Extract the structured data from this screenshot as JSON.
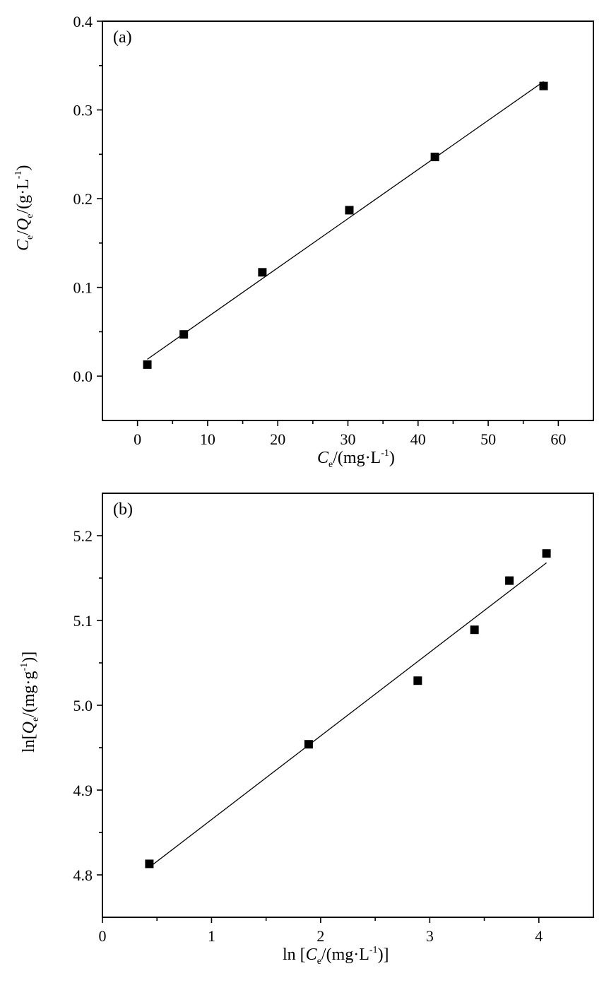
{
  "chart_data": [
    {
      "type": "scatter",
      "panel_label": "(a)",
      "xlabel": "Ce/(mg·L-1)",
      "ylabel": "Ce/Qe/(g·L-1)",
      "xlim": [
        -5,
        65
      ],
      "ylim": [
        -0.05,
        0.4
      ],
      "x_ticks": [
        0,
        10,
        20,
        30,
        40,
        50,
        60
      ],
      "x_tick_labels": [
        "0",
        "10",
        "20",
        "30",
        "40",
        "50",
        "60"
      ],
      "y_ticks": [
        0.0,
        0.1,
        0.2,
        0.3,
        0.4
      ],
      "y_tick_labels": [
        "0.0",
        "0.1",
        "0.2",
        "0.3",
        "0.4"
      ],
      "series": [
        {
          "marker": "square",
          "color": "#000000",
          "x": [
            1.4,
            6.6,
            17.8,
            30.2,
            42.4,
            57.9
          ],
          "y": [
            0.013,
            0.047,
            0.117,
            0.187,
            0.247,
            0.327
          ]
        }
      ],
      "fit_line": {
        "x": [
          1.4,
          57.9
        ],
        "y": [
          0.019,
          0.332
        ]
      }
    },
    {
      "type": "scatter",
      "panel_label": "(b)",
      "xlabel": "ln[Ce/(mg·L-1)]",
      "ylabel": "ln[Qe/(mg·g-1)]",
      "xlim": [
        0,
        4.5
      ],
      "ylim": [
        4.75,
        5.25
      ],
      "x_ticks": [
        0,
        1,
        2,
        3,
        4
      ],
      "x_tick_labels": [
        "0",
        "1",
        "2",
        "3",
        "4"
      ],
      "y_ticks": [
        4.8,
        4.9,
        5.0,
        5.1,
        5.2
      ],
      "y_tick_labels": [
        "4.8",
        "4.9",
        "5.0",
        "5.1",
        "5.2"
      ],
      "series": [
        {
          "marker": "square",
          "color": "#000000",
          "x": [
            0.43,
            1.89,
            2.89,
            3.41,
            3.73,
            4.07
          ],
          "y": [
            4.813,
            4.954,
            5.029,
            5.089,
            5.147,
            5.179
          ]
        }
      ],
      "fit_line": {
        "x": [
          0.43,
          4.07
        ],
        "y": [
          4.809,
          5.168
        ]
      }
    }
  ]
}
